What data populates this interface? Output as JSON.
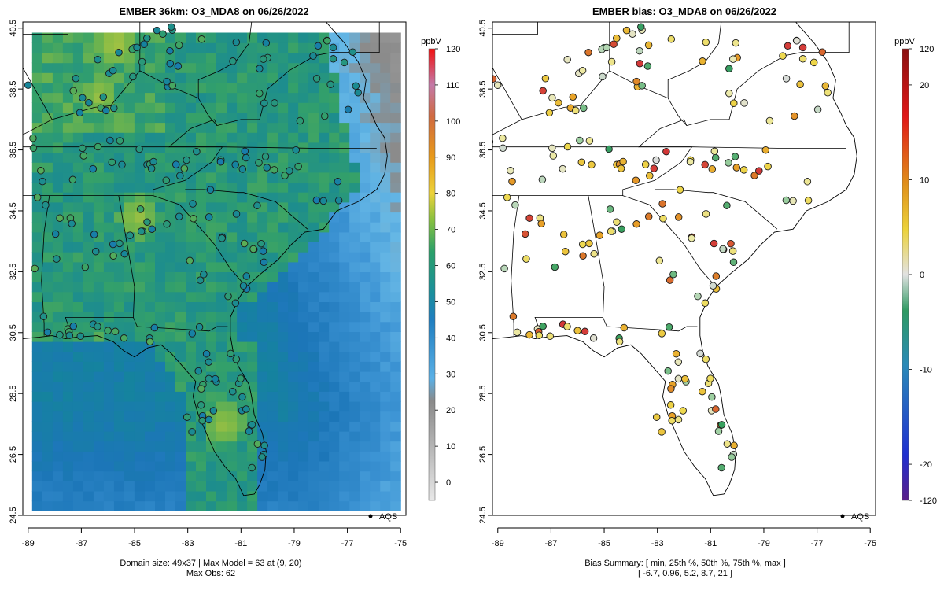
{
  "panels": [
    {
      "id": "left",
      "title": "EMBER 36km: O3_MDA8 on 06/26/2022",
      "colorbar_unit": "ppbV",
      "colorbar_ticks": [
        "0",
        "10",
        "20",
        "30",
        "40",
        "50",
        "60",
        "70",
        "80",
        "90",
        "100",
        "110",
        "120"
      ],
      "legend_label": "AQS",
      "footer": [
        "Domain size: 49x37 | Max Model = 63 at (9, 20)",
        "Max Obs: 62"
      ]
    },
    {
      "id": "right",
      "title": "EMBER bias: O3_MDA8 on 06/26/2022",
      "colorbar_unit": "ppbV",
      "colorbar_ticks": [
        "-120",
        "-20",
        "-10",
        "0",
        "10",
        "20",
        "120"
      ],
      "legend_label": "AQS",
      "footer": [
        "Bias Summary: [ min, 25th %, 50th %, 75th %, max ]",
        "[ -6.7,   0.96,   5.2,   8.7,   21 ]"
      ]
    }
  ],
  "axes": {
    "x_ticks": [
      "-89",
      "-87",
      "-85",
      "-83",
      "-81",
      "-79",
      "-77",
      "-75"
    ],
    "y_ticks": [
      "24.5",
      "26.5",
      "28.5",
      "30.5",
      "32.5",
      "34.5",
      "36.5",
      "38.5",
      "40.5"
    ]
  },
  "chart_data": [
    {
      "type": "heatmap",
      "title": "EMBER 36km: O3_MDA8 on 06/26/2022",
      "variable": "O3_MDA8",
      "units": "ppbV",
      "color_range": [
        0,
        120
      ],
      "xlim": [
        -89.2,
        -74.8
      ],
      "ylim": [
        24.5,
        40.7
      ],
      "domain_size": "49x37",
      "max_model": 63,
      "max_model_cell": [
        9,
        20
      ],
      "max_obs": 62,
      "land_typical_ppbV": [
        45,
        60
      ],
      "ocean_typical_ppbV": [
        20,
        40
      ],
      "hotspots": [
        {
          "lon": -86.3,
          "lat": 38.3,
          "value": 62
        },
        {
          "lon": -85.7,
          "lat": 40.0,
          "value": 63
        },
        {
          "lon": -84.9,
          "lat": 34.3,
          "value": 62
        },
        {
          "lon": -81.6,
          "lat": 27.5,
          "value": 62
        }
      ]
    },
    {
      "type": "scatter",
      "title": "EMBER bias: O3_MDA8 on 06/26/2022",
      "variable": "O3_MDA8 bias (model - AQS)",
      "units": "ppbV",
      "color_range": [
        -120,
        120
      ],
      "xlim": [
        -89.2,
        -74.8
      ],
      "ylim": [
        24.5,
        40.7
      ],
      "summary": {
        "min": -6.7,
        "p25": 0.96,
        "median": 5.2,
        "p75": 8.7,
        "max": 21
      }
    }
  ],
  "colors": {
    "land_background": "#ffffff",
    "outline": "#000000",
    "ocean_model": "#5aaee0",
    "land_model": "#3d9e8c"
  }
}
